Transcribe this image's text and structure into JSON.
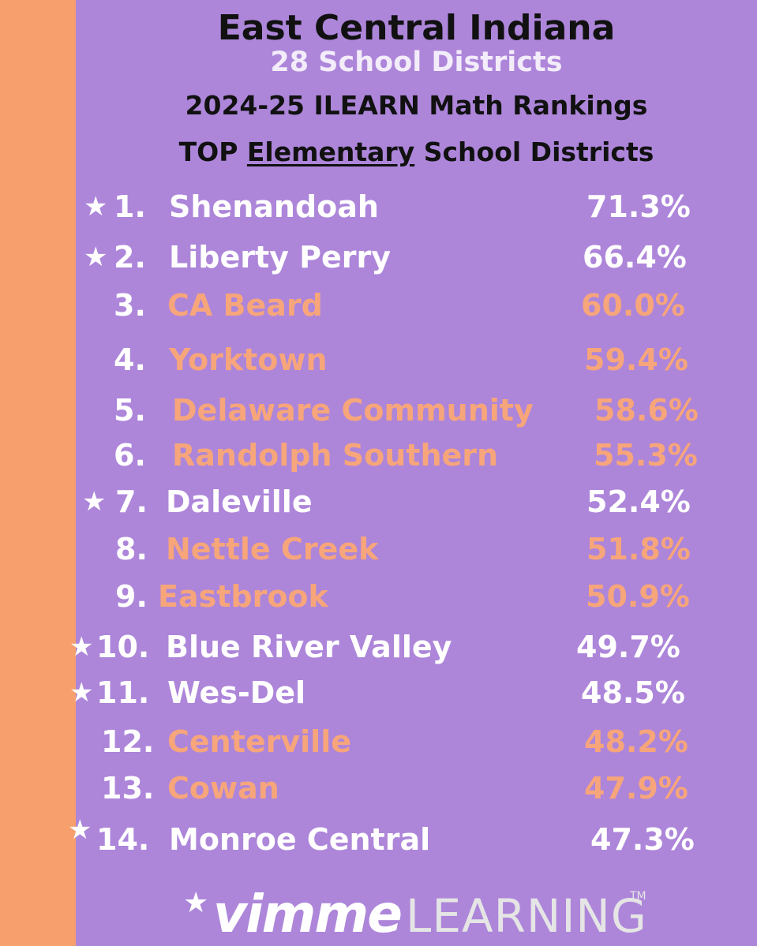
{
  "header": {
    "title": "East Central Indiana",
    "subtitle": "28 School Districts",
    "line3": "2024-25 ILEARN Math Rankings",
    "line4_prefix": "TOP ",
    "line4_underlined": "Elementary",
    "line4_suffix": " School Districts"
  },
  "colors": {
    "panel": "#ad86da",
    "stripe": "#f7a06e",
    "highlight_text": "#f7a57a",
    "default_text": "#ffffff"
  },
  "rankings": [
    {
      "star": "★",
      "rank": "1.",
      "name": "Shenandoah",
      "pct": "71.3%"
    },
    {
      "star": "★",
      "rank": "2.",
      "name": "Liberty Perry",
      "pct": "66.4%"
    },
    {
      "star": "",
      "rank": "3.",
      "name": "CA Beard",
      "pct": "60.0%"
    },
    {
      "star": "",
      "rank": "4.",
      "name": "Yorktown",
      "pct": "59.4%"
    },
    {
      "star": "",
      "rank": "5.",
      "name": "Delaware Community",
      "pct": "58.6%"
    },
    {
      "star": "",
      "rank": "6.",
      "name": "Randolph Southern",
      "pct": "55.3%"
    },
    {
      "star": "★",
      "rank": "7.",
      "name": "Daleville",
      "pct": "52.4%"
    },
    {
      "star": "",
      "rank": "8.",
      "name": "Nettle Creek",
      "pct": "51.8%"
    },
    {
      "star": "",
      "rank": "9.",
      "name": "Eastbrook",
      "pct": "50.9%"
    },
    {
      "star": "★",
      "rank": "10.",
      "name": "Blue River Valley",
      "pct": "49.7%"
    },
    {
      "star": "★",
      "rank": "11.",
      "name": "Wes-Del",
      "pct": "48.5%"
    },
    {
      "star": "",
      "rank": "12.",
      "name": "Centerville",
      "pct": "48.2%"
    },
    {
      "star": "",
      "rank": "13.",
      "name": "Cowan",
      "pct": "47.9%"
    },
    {
      "star": "★",
      "rank": "14.",
      "name": "Monroe Central",
      "pct": "47.3%"
    }
  ],
  "footer": {
    "star": "★",
    "brand_bold": "vimme",
    "brand_light": "LEARNING",
    "trademark": "TM"
  }
}
